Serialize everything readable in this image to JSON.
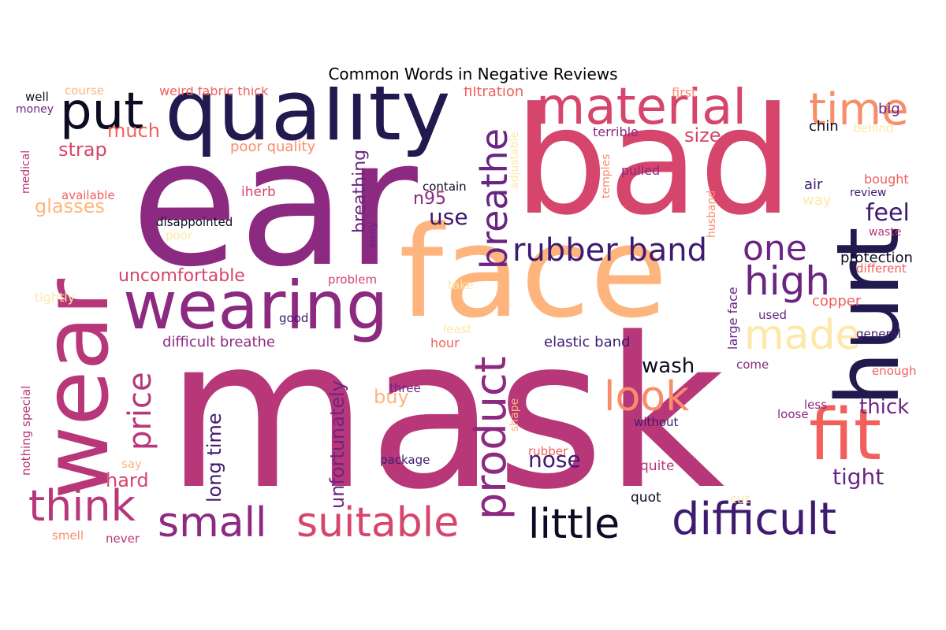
{
  "title": "Common Words in Negative Reviews",
  "palette": {
    "black": "#0d0b22",
    "navy": "#221a4f",
    "indigo": "#3f1a71",
    "purple": "#6a2582",
    "magenta": "#8c2981",
    "rose": "#b73779",
    "pink": "#d6456c",
    "coral": "#f1605d",
    "salmon": "#f88d6a",
    "peach": "#feb57d",
    "cream": "#fde8a8"
  },
  "words": [
    {
      "text": "mask",
      "color": "#b73779"
    },
    {
      "text": "ear",
      "color": "#8c2981"
    },
    {
      "text": "bad",
      "color": "#d6456c"
    },
    {
      "text": "face",
      "color": "#feb57d"
    },
    {
      "text": "wear",
      "color": "#b73779"
    },
    {
      "text": "quality",
      "color": "#221a4f"
    },
    {
      "text": "hurt",
      "color": "#221a4f"
    },
    {
      "text": "material",
      "color": "#d6456c"
    },
    {
      "text": "put",
      "color": "#0d0b22"
    },
    {
      "text": "wearing",
      "color": "#8c2981"
    },
    {
      "text": "time",
      "color": "#f88d6a"
    },
    {
      "text": "fit",
      "color": "#f1605d"
    },
    {
      "text": "difficult",
      "color": "#3f1a71"
    },
    {
      "text": "little",
      "color": "#0d0b22"
    },
    {
      "text": "suitable",
      "color": "#d6456c"
    },
    {
      "text": "small",
      "color": "#8c2981"
    },
    {
      "text": "think",
      "color": "#b73779"
    },
    {
      "text": "product",
      "color": "#8c2981"
    },
    {
      "text": "rubber band",
      "color": "#3f1a71"
    },
    {
      "text": "one",
      "color": "#6a2582"
    },
    {
      "text": "high",
      "color": "#6a2582"
    },
    {
      "text": "made",
      "color": "#fde8a8"
    },
    {
      "text": "look",
      "color": "#f88d6a"
    },
    {
      "text": "breathe",
      "color": "#6a2582"
    },
    {
      "text": "price",
      "color": "#b73779"
    },
    {
      "text": "uncomfortable",
      "color": "#d6456c"
    },
    {
      "text": "much",
      "color": "#f1605d"
    },
    {
      "text": "strap",
      "color": "#d6456c"
    },
    {
      "text": "glasses",
      "color": "#feb57d"
    },
    {
      "text": "n95",
      "color": "#8c2981"
    },
    {
      "text": "use",
      "color": "#3f1a71"
    },
    {
      "text": "breathing",
      "color": "#6a2582"
    },
    {
      "text": "size",
      "color": "#d6456c"
    },
    {
      "text": "feel",
      "color": "#3f1a71"
    },
    {
      "text": "wash",
      "color": "#0d0b22"
    },
    {
      "text": "thick",
      "color": "#6a2582"
    },
    {
      "text": "tight",
      "color": "#6a2582"
    },
    {
      "text": "nose",
      "color": "#3f1a71"
    },
    {
      "text": "hard",
      "color": "#d6456c"
    },
    {
      "text": "long time",
      "color": "#3f1a71"
    },
    {
      "text": "unfortunately",
      "color": "#6a2582"
    },
    {
      "text": "buy",
      "color": "#feb57d"
    },
    {
      "text": "elastic band",
      "color": "#3f1a71"
    },
    {
      "text": "difficult breathe",
      "color": "#8c2981"
    },
    {
      "text": "poor quality",
      "color": "#f88d6a"
    },
    {
      "text": "weird fabric thick",
      "color": "#f1605d"
    },
    {
      "text": "filtration",
      "color": "#f1605d"
    },
    {
      "text": "course",
      "color": "#feb57d"
    },
    {
      "text": "well",
      "color": "#0d0b22"
    },
    {
      "text": "money",
      "color": "#6a2582"
    },
    {
      "text": "first",
      "color": "#f88d6a"
    },
    {
      "text": "big",
      "color": "#6a2582"
    },
    {
      "text": "chin",
      "color": "#0d0b22"
    },
    {
      "text": "behind",
      "color": "#fde8a8"
    },
    {
      "text": "terrible",
      "color": "#8c2981"
    },
    {
      "text": "pulled",
      "color": "#8c2981"
    },
    {
      "text": "bought",
      "color": "#f1605d"
    },
    {
      "text": "air",
      "color": "#3f1a71"
    },
    {
      "text": "review",
      "color": "#3f1a71"
    },
    {
      "text": "way",
      "color": "#fde8a8"
    },
    {
      "text": "waste",
      "color": "#b73779"
    },
    {
      "text": "protection",
      "color": "#0d0b22"
    },
    {
      "text": "different",
      "color": "#f1605d"
    },
    {
      "text": "copper",
      "color": "#f1605d"
    },
    {
      "text": "used",
      "color": "#6a2582"
    },
    {
      "text": "general",
      "color": "#3f1a71"
    },
    {
      "text": "come",
      "color": "#8c2981"
    },
    {
      "text": "enough",
      "color": "#f1605d"
    },
    {
      "text": "less",
      "color": "#8c2981"
    },
    {
      "text": "loose",
      "color": "#8c2981"
    },
    {
      "text": "without",
      "color": "#3f1a71"
    },
    {
      "text": "quite",
      "color": "#b73779"
    },
    {
      "text": "quot",
      "color": "#0d0b22"
    },
    {
      "text": "cut",
      "color": "#fde8a8"
    },
    {
      "text": "rubber",
      "color": "#f1605d"
    },
    {
      "text": "package",
      "color": "#3f1a71"
    },
    {
      "text": "three",
      "color": "#6a2582"
    },
    {
      "text": "contain",
      "color": "#0d0b22"
    },
    {
      "text": "iherb",
      "color": "#d6456c"
    },
    {
      "text": "available",
      "color": "#f1605d"
    },
    {
      "text": "disappointed",
      "color": "#0d0b22"
    },
    {
      "text": "poor",
      "color": "#fde8a8"
    },
    {
      "text": "problem",
      "color": "#d6456c"
    },
    {
      "text": "take",
      "color": "#fde8a8"
    },
    {
      "text": "tightly",
      "color": "#fde8a8"
    },
    {
      "text": "good",
      "color": "#3f1a71"
    },
    {
      "text": "least",
      "color": "#fde8a8"
    },
    {
      "text": "hour",
      "color": "#f1605d"
    },
    {
      "text": "say",
      "color": "#feb57d"
    },
    {
      "text": "smell",
      "color": "#f88d6a"
    },
    {
      "text": "never",
      "color": "#b73779"
    },
    {
      "text": "medical",
      "color": "#b73779"
    },
    {
      "text": "nothing special",
      "color": "#b73779"
    },
    {
      "text": "adjustable",
      "color": "#fde8a8"
    },
    {
      "text": "temples",
      "color": "#f88d6a"
    },
    {
      "text": "husband",
      "color": "#f88d6a"
    },
    {
      "text": "large face",
      "color": "#6a2582"
    },
    {
      "text": "away",
      "color": "#6a2582"
    },
    {
      "text": "shape",
      "color": "#feb57d"
    }
  ]
}
